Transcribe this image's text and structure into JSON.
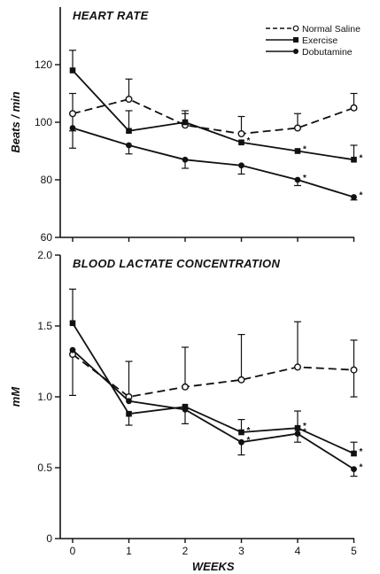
{
  "chart_data": [
    {
      "type": "line",
      "title": "HEART RATE",
      "xlabel": "",
      "ylabel": "Beats / min",
      "x": [
        0,
        1,
        2,
        3,
        4,
        5
      ],
      "xlim": [
        0,
        5
      ],
      "ylim": [
        60,
        140
      ],
      "yticks": [
        60,
        80,
        100,
        120
      ],
      "ytick_labels": [
        "60",
        "80",
        "100",
        "120"
      ],
      "grid": false,
      "legend_position": "top-right",
      "series": [
        {
          "name": "Normal Saline",
          "style": "dashed",
          "marker": "open-circle",
          "values": [
            103,
            108,
            99,
            96,
            98,
            105
          ],
          "error_upper": [
            7,
            7,
            4,
            6,
            5,
            5
          ],
          "error_lower": [
            6,
            0,
            0,
            0,
            0,
            0
          ],
          "significant": [
            false,
            false,
            false,
            false,
            false,
            false
          ]
        },
        {
          "name": "Exercise",
          "style": "solid",
          "marker": "filled-square",
          "values": [
            118,
            97,
            100,
            93,
            90,
            87
          ],
          "error_upper": [
            7,
            7,
            4,
            0,
            0,
            5
          ],
          "error_lower": [
            0,
            0,
            0,
            0,
            0,
            0
          ],
          "significant": [
            false,
            false,
            false,
            true,
            true,
            true
          ]
        },
        {
          "name": "Dobutamine",
          "style": "solid",
          "marker": "filled-circle",
          "values": [
            98,
            92,
            87,
            85,
            80,
            74
          ],
          "error_upper": [
            0,
            0,
            0,
            0,
            0,
            0
          ],
          "error_lower": [
            7,
            3,
            3,
            3,
            2,
            1
          ],
          "significant": [
            false,
            false,
            false,
            false,
            true,
            true
          ]
        }
      ]
    },
    {
      "type": "line",
      "title": "BLOOD LACTATE CONCENTRATION",
      "xlabel": "WEEKS",
      "ylabel": "mM",
      "x": [
        0,
        1,
        2,
        3,
        4,
        5
      ],
      "xlim": [
        0,
        5
      ],
      "ylim": [
        0,
        2.0
      ],
      "yticks": [
        0,
        0.5,
        1.0,
        1.5,
        2.0
      ],
      "ytick_labels": [
        "0",
        "0.5",
        "1.0",
        "1.5",
        "2.0"
      ],
      "xticks": [
        0,
        1,
        2,
        3,
        4,
        5
      ],
      "xtick_labels": [
        "0",
        "1",
        "2",
        "3",
        "4",
        "5"
      ],
      "grid": false,
      "series": [
        {
          "name": "Normal Saline",
          "style": "dashed",
          "marker": "open-circle",
          "values": [
            1.3,
            1.0,
            1.07,
            1.12,
            1.21,
            1.19
          ],
          "error_upper": [
            0.0,
            0.25,
            0.28,
            0.32,
            0.32,
            0.21
          ],
          "error_lower": [
            0.29,
            0.0,
            0.0,
            0.0,
            0.0,
            0.19
          ],
          "significant": [
            false,
            false,
            false,
            false,
            false,
            false
          ]
        },
        {
          "name": "Exercise",
          "style": "solid",
          "marker": "filled-square",
          "values": [
            1.52,
            0.88,
            0.93,
            0.75,
            0.78,
            0.6
          ],
          "error_upper": [
            0.24,
            0.0,
            0.0,
            0.09,
            0.12,
            0.08
          ],
          "error_lower": [
            0.0,
            0.08,
            0.12,
            0.0,
            0.0,
            0.0
          ],
          "significant": [
            false,
            false,
            false,
            true,
            true,
            true
          ]
        },
        {
          "name": "Dobutamine",
          "style": "solid",
          "marker": "filled-circle",
          "values": [
            1.33,
            0.97,
            0.91,
            0.68,
            0.74,
            0.49
          ],
          "error_upper": [
            0.0,
            0.0,
            0.0,
            0.0,
            0.0,
            0.0
          ],
          "error_lower": [
            0.0,
            0.0,
            0.0,
            0.09,
            0.06,
            0.05
          ],
          "significant": [
            false,
            false,
            false,
            true,
            true,
            true
          ]
        }
      ]
    }
  ]
}
